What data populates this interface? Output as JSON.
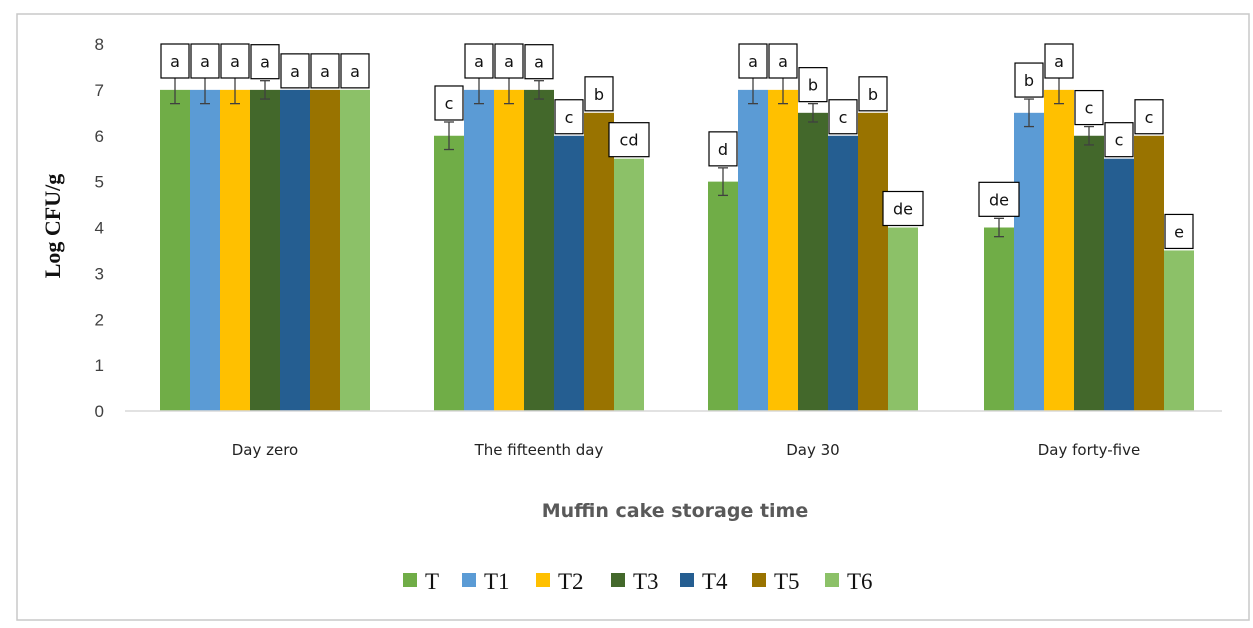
{
  "chart_data": {
    "type": "bar",
    "title": "",
    "xlabel": "Muffin cake storage time",
    "ylabel": "Log CFU/g",
    "ylim": [
      0,
      8
    ],
    "yticks": [
      0,
      1,
      2,
      3,
      4,
      5,
      6,
      7,
      8
    ],
    "grid": false,
    "legend_position": "bottom",
    "categories": [
      "Day zero",
      "The fifteenth day",
      "Day 30",
      "Day forty-five"
    ],
    "series": [
      {
        "name": "T",
        "color": "#70ad47",
        "values": [
          7,
          6,
          5,
          4
        ],
        "errors": [
          0.3,
          0.3,
          0.3,
          0.2
        ],
        "labels": [
          "a",
          "c",
          "d",
          "de"
        ]
      },
      {
        "name": "T1",
        "color": "#5b9bd5",
        "values": [
          7,
          7,
          7,
          6.5
        ],
        "errors": [
          0.3,
          0.3,
          0.3,
          0.3
        ],
        "labels": [
          "a",
          "a",
          "a",
          "b"
        ]
      },
      {
        "name": "T2",
        "color": "#ffc000",
        "values": [
          7,
          7,
          7,
          7
        ],
        "errors": [
          0.3,
          0.3,
          0.3,
          0.3
        ],
        "labels": [
          "a",
          "a",
          "a",
          "a"
        ]
      },
      {
        "name": "T3",
        "color": "#43682b",
        "values": [
          7,
          7,
          6.5,
          6
        ],
        "errors": [
          0.2,
          0.2,
          0.2,
          0.2
        ],
        "labels": [
          "a",
          "a",
          "b",
          "c"
        ]
      },
      {
        "name": "T4",
        "color": "#255e91",
        "values": [
          7,
          6,
          6,
          5.5
        ],
        "errors": [
          0,
          0,
          0,
          0
        ],
        "labels": [
          "a",
          "c",
          "c",
          "c"
        ]
      },
      {
        "name": "T5",
        "color": "#997300",
        "values": [
          7,
          6.5,
          6.5,
          6
        ],
        "errors": [
          0,
          0,
          0,
          0
        ],
        "labels": [
          "a",
          "b",
          "b",
          "c"
        ]
      },
      {
        "name": "T6",
        "color": "#8cc168",
        "values": [
          7,
          5.5,
          4,
          3.5
        ],
        "errors": [
          0,
          0,
          0,
          0
        ],
        "labels": [
          "a",
          "cd",
          "de",
          "e"
        ]
      }
    ]
  }
}
